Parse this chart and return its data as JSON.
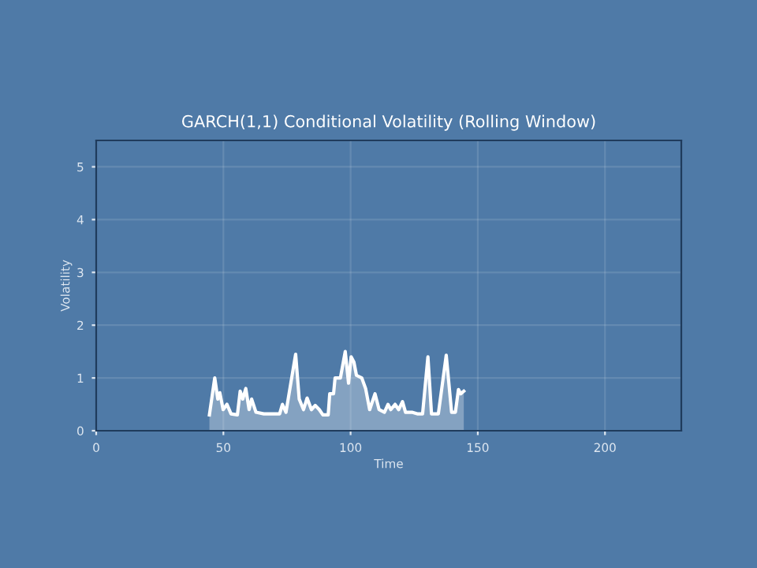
{
  "chart_data": {
    "type": "area",
    "title": "GARCH(1,1) Conditional Volatility (Rolling Window)",
    "xlabel": "Time",
    "ylabel": "Volatility",
    "series": [
      {
        "color": "#ffffff",
        "x": [
          44.5,
          46.6,
          47.8,
          48.6,
          49.9,
          51.4,
          53,
          55.5,
          56.6,
          57.6,
          58.8,
          60.1,
          61.1,
          62.8,
          65.9,
          72.1,
          73.2,
          74.6,
          78.4,
          79.8,
          81.5,
          82.9,
          84.6,
          86.1,
          87.7,
          89.1,
          91.2,
          91.8,
          93.3,
          93.9,
          96,
          97.9,
          99.2,
          100.2,
          101.3,
          102.3,
          104.4,
          105.9,
          107.5,
          109.6,
          111.2,
          113.3,
          114.7,
          115.8,
          117.5,
          118.9,
          120.4,
          121.6,
          124.1,
          126.2,
          128.3,
          130.4,
          131.8,
          134.5,
          137.6,
          139.7,
          141.2,
          142.4,
          143.3,
          144.5
        ],
        "values": [
          0.3,
          1.0,
          0.6,
          0.72,
          0.4,
          0.5,
          0.32,
          0.3,
          0.75,
          0.6,
          0.8,
          0.4,
          0.6,
          0.35,
          0.32,
          0.32,
          0.5,
          0.35,
          1.45,
          0.6,
          0.4,
          0.62,
          0.4,
          0.48,
          0.4,
          0.3,
          0.3,
          0.7,
          0.7,
          1.0,
          1.0,
          1.5,
          0.9,
          1.4,
          1.3,
          1.05,
          1.0,
          0.8,
          0.4,
          0.7,
          0.4,
          0.35,
          0.5,
          0.4,
          0.5,
          0.4,
          0.55,
          0.35,
          0.35,
          0.32,
          0.32,
          1.4,
          0.32,
          0.32,
          1.43,
          0.35,
          0.35,
          0.78,
          0.7,
          0.75
        ]
      }
    ],
    "xlim": [
      0,
      230
    ],
    "ylim": [
      0,
      5.5
    ],
    "xticks": [
      0,
      50,
      100,
      150,
      200
    ],
    "yticks": [
      0,
      1,
      2,
      3,
      4,
      5
    ],
    "grid": true
  }
}
